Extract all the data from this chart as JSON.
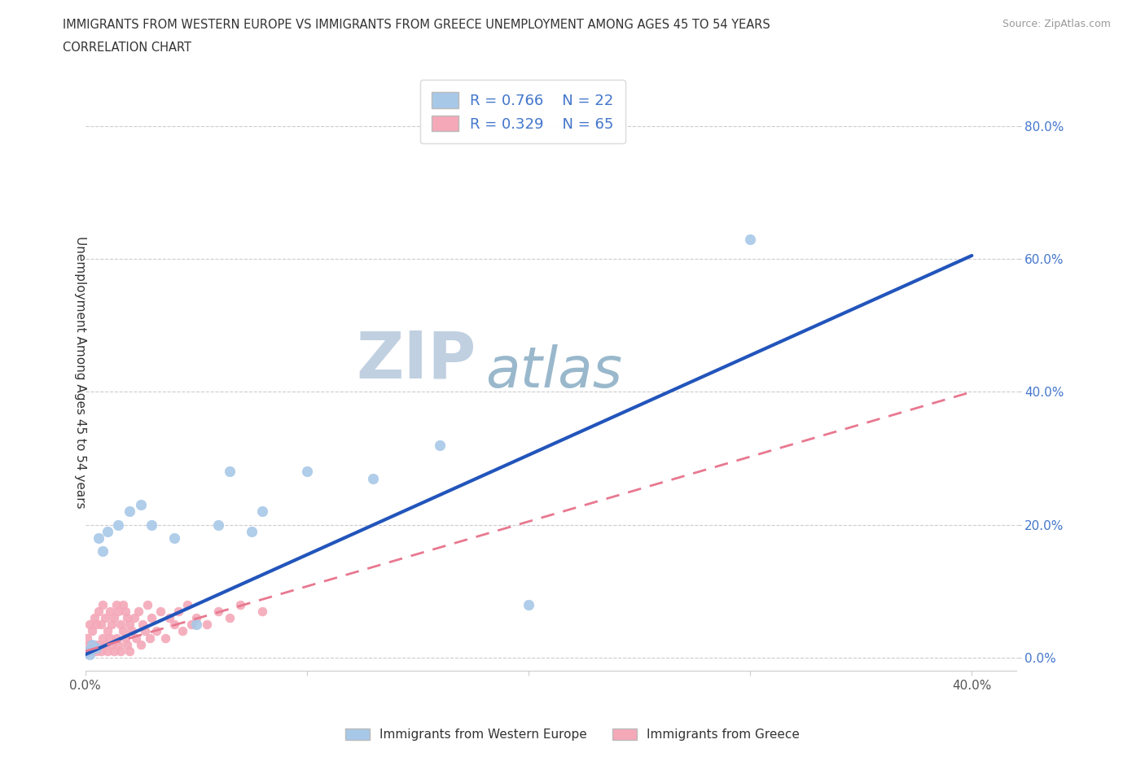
{
  "title_line1": "IMMIGRANTS FROM WESTERN EUROPE VS IMMIGRANTS FROM GREECE UNEMPLOYMENT AMONG AGES 45 TO 54 YEARS",
  "title_line2": "CORRELATION CHART",
  "source_text": "Source: ZipAtlas.com",
  "ylabel": "Unemployment Among Ages 45 to 54 years",
  "xlim": [
    0.0,
    0.42
  ],
  "ylim": [
    -0.02,
    0.88
  ],
  "R_blue": 0.766,
  "N_blue": 22,
  "R_pink": 0.329,
  "N_pink": 65,
  "blue_color": "#a8c8e8",
  "pink_color": "#f4a8b8",
  "blue_line_color": "#2255bb",
  "pink_line_color": "#e87890",
  "tick_color": "#4477cc",
  "watermark_zip_color": "#c0d0e0",
  "watermark_atlas_color": "#9ab8cc",
  "legend_label_blue": "Immigrants from Western Europe",
  "legend_label_pink": "Immigrants from Greece",
  "blue_scatter_x": [
    0.001,
    0.002,
    0.003,
    0.005,
    0.006,
    0.008,
    0.01,
    0.015,
    0.02,
    0.025,
    0.03,
    0.04,
    0.05,
    0.06,
    0.065,
    0.075,
    0.08,
    0.1,
    0.13,
    0.16,
    0.2,
    0.3
  ],
  "blue_scatter_y": [
    0.01,
    0.005,
    0.02,
    0.015,
    0.18,
    0.16,
    0.19,
    0.2,
    0.22,
    0.23,
    0.2,
    0.18,
    0.05,
    0.2,
    0.28,
    0.19,
    0.22,
    0.28,
    0.27,
    0.32,
    0.08,
    0.63
  ],
  "pink_scatter_x": [
    0.001,
    0.001,
    0.002,
    0.002,
    0.003,
    0.003,
    0.004,
    0.004,
    0.005,
    0.005,
    0.006,
    0.006,
    0.007,
    0.007,
    0.008,
    0.008,
    0.009,
    0.009,
    0.01,
    0.01,
    0.011,
    0.011,
    0.012,
    0.012,
    0.013,
    0.013,
    0.014,
    0.014,
    0.015,
    0.015,
    0.016,
    0.016,
    0.017,
    0.017,
    0.018,
    0.018,
    0.019,
    0.019,
    0.02,
    0.02,
    0.021,
    0.022,
    0.023,
    0.024,
    0.025,
    0.026,
    0.027,
    0.028,
    0.029,
    0.03,
    0.032,
    0.034,
    0.036,
    0.038,
    0.04,
    0.042,
    0.044,
    0.046,
    0.048,
    0.05,
    0.055,
    0.06,
    0.065,
    0.07,
    0.08
  ],
  "pink_scatter_y": [
    0.01,
    0.03,
    0.02,
    0.05,
    0.01,
    0.04,
    0.02,
    0.06,
    0.01,
    0.05,
    0.02,
    0.07,
    0.01,
    0.05,
    0.03,
    0.08,
    0.02,
    0.06,
    0.01,
    0.04,
    0.03,
    0.07,
    0.02,
    0.05,
    0.01,
    0.06,
    0.03,
    0.08,
    0.02,
    0.07,
    0.01,
    0.05,
    0.04,
    0.08,
    0.03,
    0.07,
    0.02,
    0.06,
    0.01,
    0.05,
    0.04,
    0.06,
    0.03,
    0.07,
    0.02,
    0.05,
    0.04,
    0.08,
    0.03,
    0.06,
    0.04,
    0.07,
    0.03,
    0.06,
    0.05,
    0.07,
    0.04,
    0.08,
    0.05,
    0.06,
    0.05,
    0.07,
    0.06,
    0.08,
    0.07
  ],
  "blue_line_x": [
    0.0,
    0.4
  ],
  "blue_line_y": [
    0.005,
    0.605
  ],
  "pink_line_x": [
    0.0,
    0.4
  ],
  "pink_line_y": [
    0.01,
    0.4
  ]
}
